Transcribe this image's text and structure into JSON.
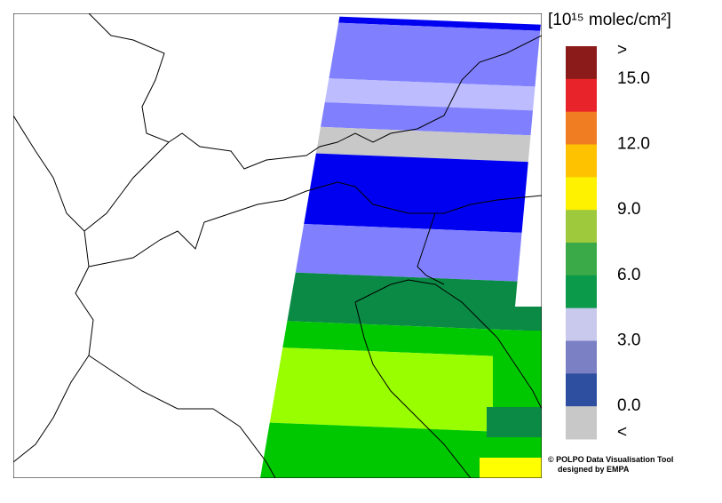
{
  "legend": {
    "title": "[10¹⁵ molec/cm²]",
    "labels": [
      ">",
      "15.0",
      "12.0",
      "9.0",
      "6.0",
      "3.0",
      "0.0",
      "<"
    ],
    "colors": [
      "#8b1a1a",
      "#e8242a",
      "#f07d22",
      "#ffc200",
      "#fff200",
      "#9fc93c",
      "#3aaa48",
      "#0b9a4a",
      "#c9c9ee",
      "#7b7fc3",
      "#2e4fa0",
      "#c8c8c8"
    ]
  },
  "credit": [
    "© POLPO Data Visualisation Tool",
    "designed by EMPA"
  ]
}
